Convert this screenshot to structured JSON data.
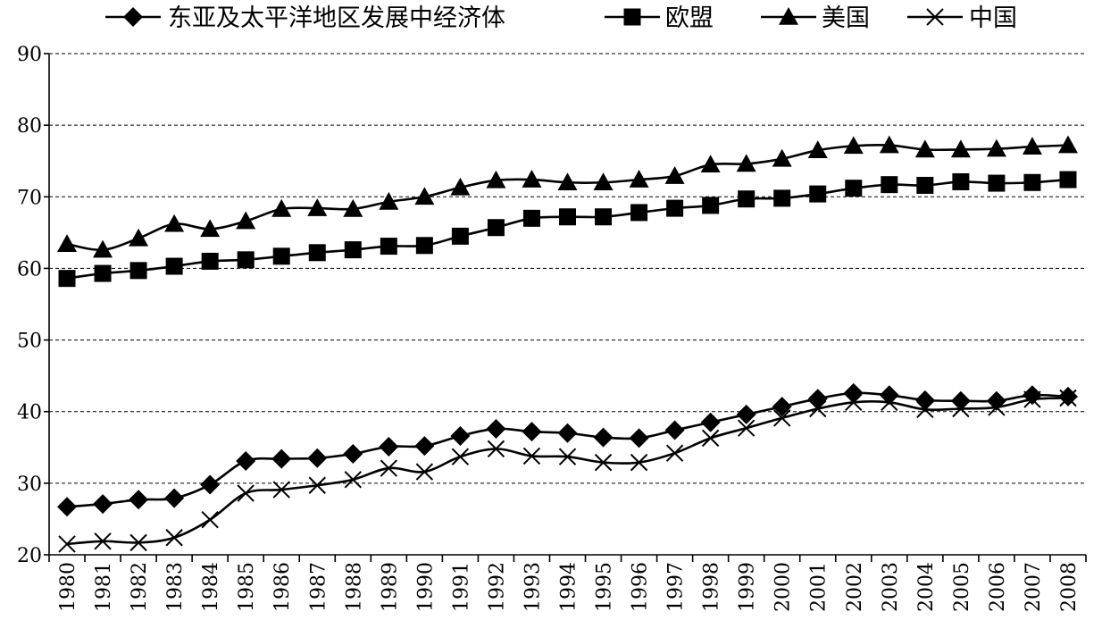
{
  "chart_data": {
    "type": "line",
    "title": "",
    "xlabel": "",
    "ylabel": "",
    "ylim": [
      20,
      90
    ],
    "yticks": [
      20,
      30,
      40,
      50,
      60,
      70,
      80,
      90
    ],
    "grid": true,
    "legend_position": "top",
    "categories": [
      "1980",
      "1981",
      "1982",
      "1983",
      "1984",
      "1985",
      "1986",
      "1987",
      "1988",
      "1989",
      "1990",
      "1991",
      "1992",
      "1993",
      "1994",
      "1995",
      "1996",
      "1997",
      "1998",
      "1999",
      "2000",
      "2001",
      "2002",
      "2003",
      "2004",
      "2005",
      "2006",
      "2007",
      "2008"
    ],
    "series": [
      {
        "name": "东亚及太平洋地区发展中经济体",
        "marker": "diamond",
        "values": [
          26.7,
          27.1,
          27.7,
          27.9,
          29.8,
          33.1,
          33.4,
          33.5,
          34.1,
          35.1,
          35.2,
          36.6,
          37.6,
          37.2,
          37.0,
          36.4,
          36.3,
          37.4,
          38.5,
          39.6,
          40.7,
          41.8,
          42.6,
          42.3,
          41.6,
          41.5,
          41.5,
          42.3,
          42.1
        ]
      },
      {
        "name": "欧盟",
        "marker": "square",
        "values": [
          58.6,
          59.3,
          59.7,
          60.3,
          61.0,
          61.2,
          61.7,
          62.2,
          62.6,
          63.1,
          63.2,
          64.5,
          65.7,
          67.0,
          67.2,
          67.2,
          67.8,
          68.4,
          68.8,
          69.7,
          69.8,
          70.4,
          71.2,
          71.7,
          71.6,
          72.1,
          71.9,
          72.0,
          72.4
        ]
      },
      {
        "name": "美国",
        "marker": "triangle",
        "values": [
          63.4,
          62.6,
          64.2,
          66.2,
          65.5,
          66.6,
          68.3,
          68.4,
          68.3,
          69.3,
          70.0,
          71.3,
          72.3,
          72.4,
          72.0,
          72.0,
          72.4,
          72.9,
          74.5,
          74.6,
          75.3,
          76.5,
          77.1,
          77.2,
          76.6,
          76.6,
          76.7,
          77.0,
          77.2
        ]
      },
      {
        "name": "中国",
        "marker": "x",
        "values": [
          21.5,
          21.9,
          21.7,
          22.4,
          24.9,
          28.6,
          29.1,
          29.7,
          30.5,
          32.1,
          31.6,
          33.7,
          34.8,
          33.8,
          33.7,
          32.9,
          32.9,
          34.2,
          36.3,
          37.7,
          39.1,
          40.4,
          41.3,
          41.3,
          40.3,
          40.4,
          40.6,
          41.7,
          41.9
        ]
      }
    ]
  }
}
